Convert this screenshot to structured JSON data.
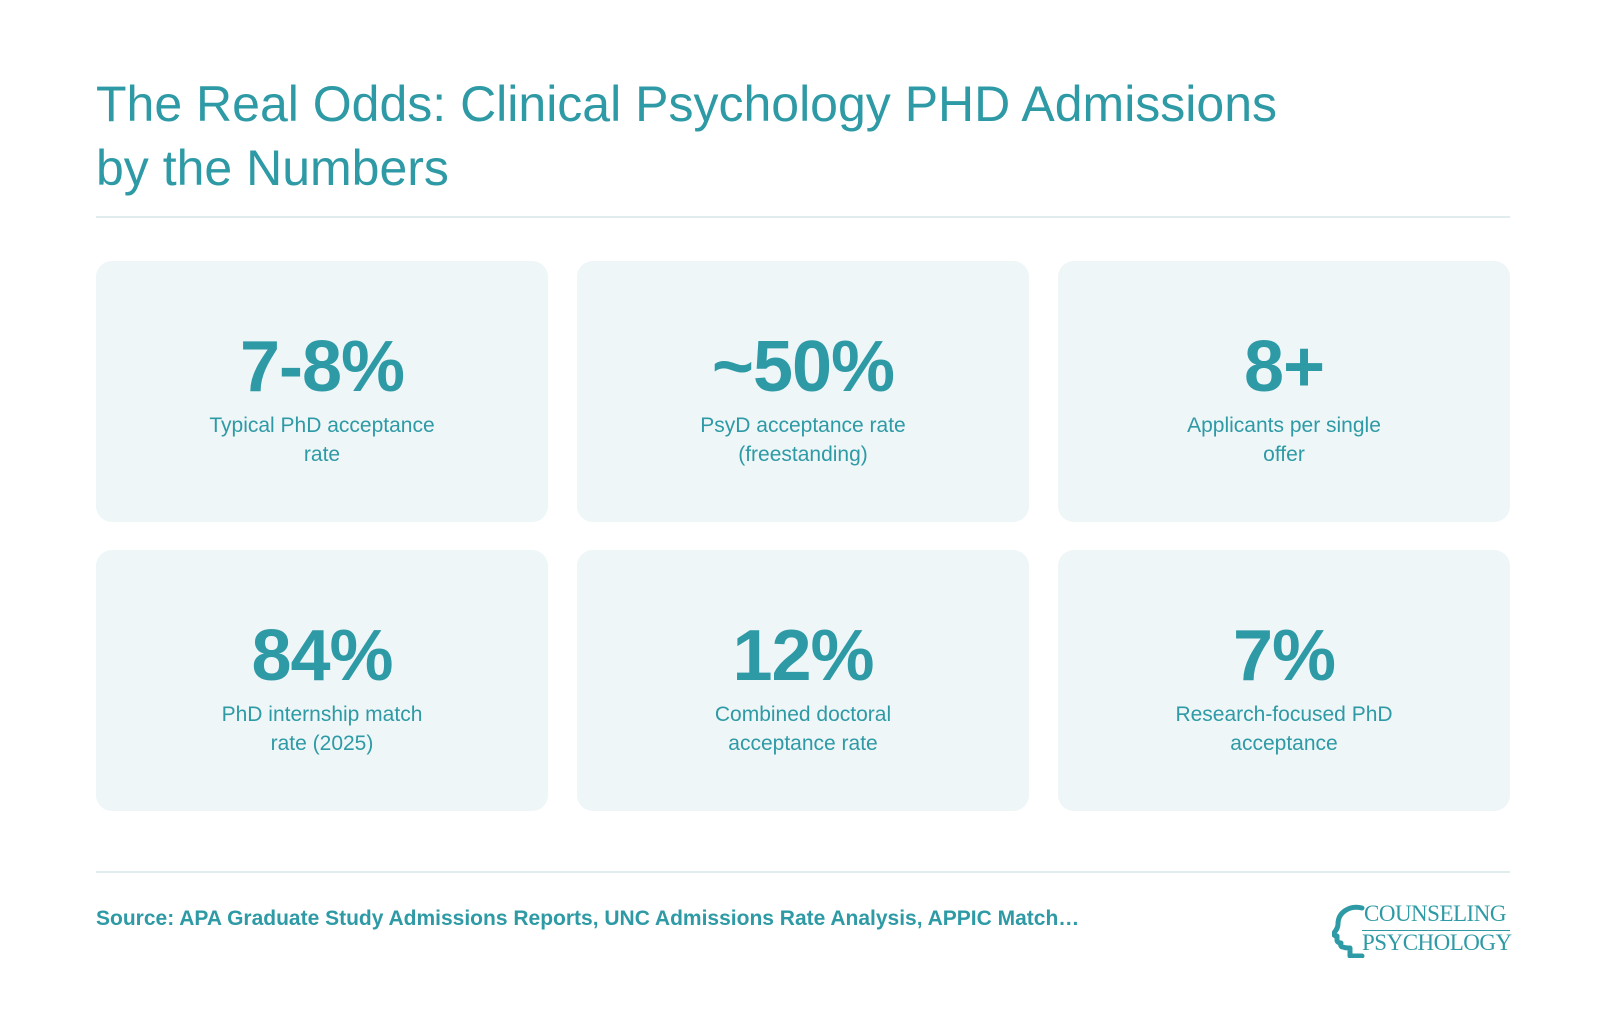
{
  "header": {
    "title_line1": "The Real Odds: Clinical Psychology PHD Admissions",
    "title_line2": "by the Numbers"
  },
  "stats": [
    {
      "value": "7-8%",
      "label_line1": "Typical PhD acceptance",
      "label_line2": "rate"
    },
    {
      "value": "~50%",
      "label_line1": "PsyD acceptance rate",
      "label_line2": "(freestanding)"
    },
    {
      "value": "8+",
      "label_line1": "Applicants per single",
      "label_line2": "offer"
    },
    {
      "value": "84%",
      "label_line1": "PhD internship match",
      "label_line2": "rate (2025)"
    },
    {
      "value": "12%",
      "label_line1": "Combined doctoral",
      "label_line2": "acceptance rate"
    },
    {
      "value": "7%",
      "label_line1": "Research-focused PhD",
      "label_line2": "acceptance"
    }
  ],
  "footer": {
    "source": "Source: APA Graduate Study Admissions Reports, UNC Admissions Rate Analysis, APPIC Match…",
    "logo_line1": "COUNSELING",
    "logo_line2": "PSYCHOLOGY",
    "logo_icon": "head-profile-icon"
  },
  "colors": {
    "accent": "#2e9aa5",
    "card_background": "#eef6f8",
    "divider": "#e1ecef"
  }
}
